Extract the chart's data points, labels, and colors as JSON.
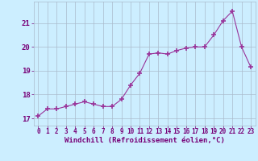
{
  "x": [
    0,
    1,
    2,
    3,
    4,
    5,
    6,
    7,
    8,
    9,
    10,
    11,
    12,
    13,
    14,
    15,
    16,
    17,
    18,
    19,
    20,
    21,
    22,
    23
  ],
  "y": [
    17.1,
    17.4,
    17.4,
    17.5,
    17.6,
    17.7,
    17.6,
    17.5,
    17.5,
    17.8,
    18.4,
    18.9,
    19.7,
    19.75,
    19.7,
    19.85,
    19.95,
    20.0,
    20.0,
    20.5,
    21.1,
    21.5,
    20.0,
    19.15
  ],
  "line_color": "#993399",
  "marker": "+",
  "marker_size": 4,
  "bg_color": "#cceeff",
  "grid_color": "#aabbcc",
  "xlabel": "Windchill (Refroidissement éolien,°C)",
  "ylim": [
    16.7,
    21.9
  ],
  "yticks": [
    17,
    18,
    19,
    20,
    21
  ],
  "xtick_labels": [
    "0",
    "1",
    "2",
    "3",
    "4",
    "5",
    "6",
    "7",
    "8",
    "9",
    "10",
    "11",
    "12",
    "13",
    "14",
    "15",
    "16",
    "17",
    "18",
    "19",
    "20",
    "21",
    "22",
    "23"
  ],
  "title_color": "#770077",
  "font_family": "monospace",
  "xlabel_fontsize": 6.5,
  "xtick_fontsize": 5.5,
  "ytick_fontsize": 6.5
}
